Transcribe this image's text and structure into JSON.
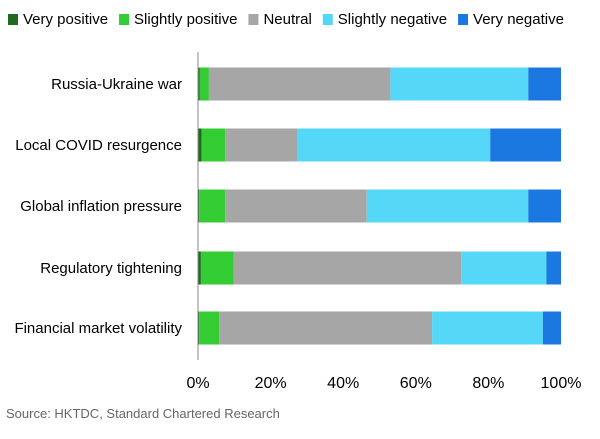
{
  "chart_data": {
    "type": "bar",
    "orientation": "horizontal",
    "stacked": true,
    "categories": [
      "Russia-Ukraine war",
      "Local COVID resurgence",
      "Global inflation pressure",
      "Regulatory tightening",
      "Financial market volatility"
    ],
    "series": [
      {
        "name": "Very positive",
        "color": "#1e6a1e",
        "values": [
          0.5,
          1.0,
          0.3,
          0.8,
          0.3
        ]
      },
      {
        "name": "Slightly positive",
        "color": "#33cc33",
        "values": [
          2.5,
          6.5,
          7.2,
          9.0,
          5.5
        ]
      },
      {
        "name": "Neutral",
        "color": "#a6a6a6",
        "values": [
          50.0,
          20.0,
          39.0,
          62.7,
          58.7
        ]
      },
      {
        "name": "Slightly negative",
        "color": "#55d7f7",
        "values": [
          38.0,
          53.0,
          44.5,
          23.5,
          30.5
        ]
      },
      {
        "name": "Very negative",
        "color": "#1a78e0",
        "values": [
          9.0,
          19.5,
          9.0,
          4.0,
          5.0
        ]
      }
    ],
    "x_ticks": [
      "0%",
      "20%",
      "40%",
      "60%",
      "80%",
      "100%"
    ],
    "xlim": [
      0,
      100
    ],
    "legend_position": "top",
    "grid": false
  },
  "source": "Source: HKTDC, Standard Chartered Research"
}
